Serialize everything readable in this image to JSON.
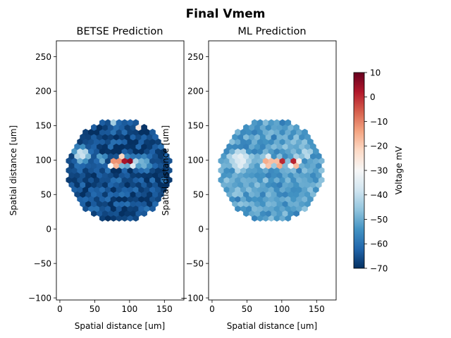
{
  "figure": {
    "title": "Final Vmem"
  },
  "colorbar": {
    "label": "Voltage mV",
    "range": [
      -70,
      10
    ],
    "ticks": [
      10,
      0,
      -10,
      -20,
      -30,
      -40,
      -50,
      -60,
      -70
    ],
    "tick_labels": [
      "10",
      "0",
      "−10",
      "−20",
      "−30",
      "−40",
      "−50",
      "−60",
      "−70"
    ],
    "colormap": "RdBu_r"
  },
  "chart_data": [
    {
      "type": "heatmap",
      "title": "BETSE Prediction",
      "xlabel": "Spatial distance [um]",
      "ylabel": "Spatial distance [um]",
      "xlim": [
        -5,
        178
      ],
      "ylim": [
        -103,
        273
      ],
      "xticks": [
        0,
        50,
        100,
        150
      ],
      "xtick_labels": [
        "0",
        "50",
        "100",
        "150"
      ],
      "yticks": [
        -100,
        -50,
        0,
        50,
        100,
        150,
        200,
        250
      ],
      "ytick_labels": [
        "−100",
        "−50",
        "0",
        "50",
        "100",
        "150",
        "200",
        "250"
      ],
      "region": {
        "center": [
          85,
          85
        ],
        "radius": 75
      },
      "hex_spacing": 8,
      "background_voltage": -66,
      "hotspots": [
        {
          "x": 32,
          "y": 108,
          "r": 16,
          "v": -40
        },
        {
          "x": 60,
          "y": 102,
          "r": 10,
          "v": -50
        },
        {
          "x": 78,
          "y": 95,
          "r": 9,
          "v": -5
        },
        {
          "x": 90,
          "y": 100,
          "r": 10,
          "v": 2
        },
        {
          "x": 102,
          "y": 98,
          "r": 9,
          "v": 6
        },
        {
          "x": 120,
          "y": 95,
          "r": 14,
          "v": -48
        },
        {
          "x": 76,
          "y": 158,
          "r": 5,
          "v": -8
        },
        {
          "x": 112,
          "y": 150,
          "r": 5,
          "v": -10
        }
      ]
    },
    {
      "type": "heatmap",
      "title": "ML Prediction",
      "xlabel": "Spatial distance [um]",
      "ylabel": "Spatial distance [um]",
      "xlim": [
        -5,
        178
      ],
      "ylim": [
        -103,
        273
      ],
      "xticks": [
        0,
        50,
        100,
        150
      ],
      "xtick_labels": [
        "0",
        "50",
        "100",
        "150"
      ],
      "yticks": [
        -100,
        -50,
        0,
        50,
        100,
        150,
        200,
        250
      ],
      "ytick_labels": [
        "−100",
        "−50",
        "0",
        "50",
        "100",
        "150",
        "200",
        "250"
      ],
      "region": {
        "center": [
          85,
          85
        ],
        "radius": 75
      },
      "hex_spacing": 8,
      "background_voltage": -52,
      "hotspots": [
        {
          "x": 40,
          "y": 100,
          "r": 20,
          "v": -35
        },
        {
          "x": 80,
          "y": 97,
          "r": 12,
          "v": -15
        },
        {
          "x": 98,
          "y": 97,
          "r": 9,
          "v": 0
        },
        {
          "x": 118,
          "y": 97,
          "r": 10,
          "v": 2
        },
        {
          "x": 135,
          "y": 110,
          "r": 10,
          "v": -40
        }
      ]
    }
  ]
}
